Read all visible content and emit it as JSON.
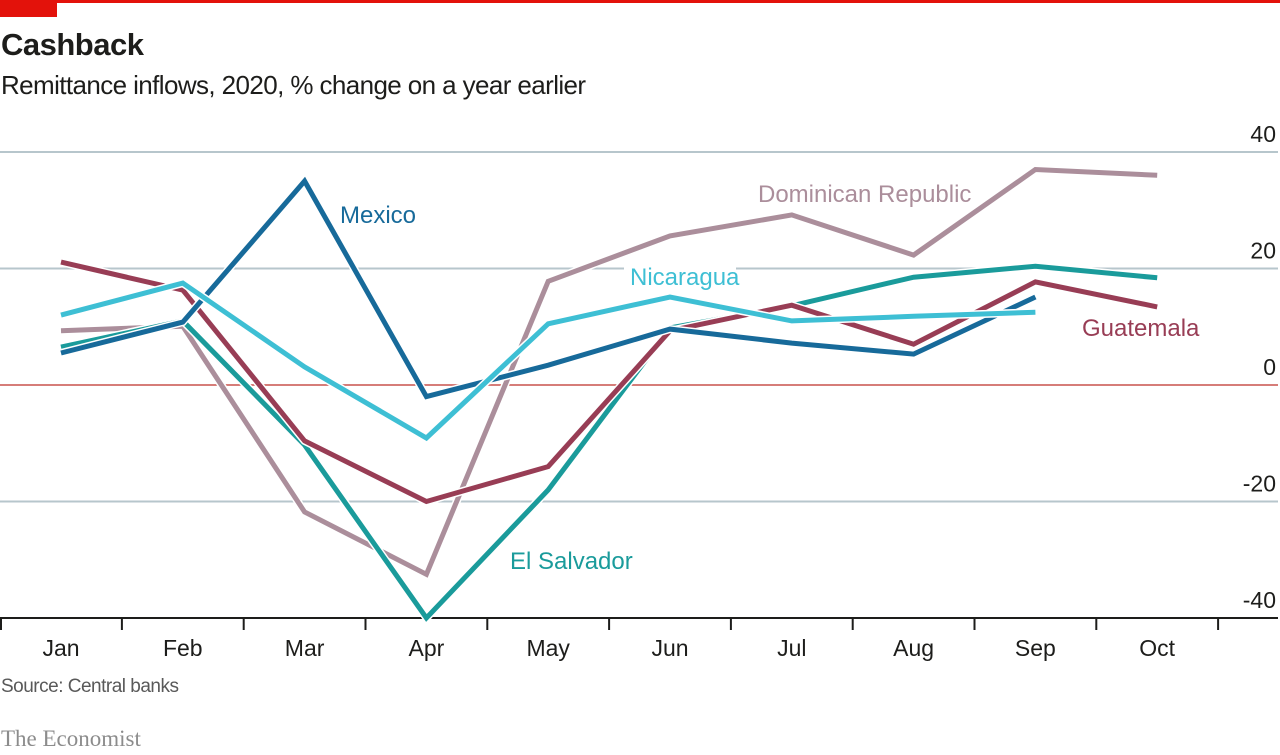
{
  "header": {
    "title": "Cashback",
    "subtitle": "Remittance inflows, 2020, % change on a year earlier"
  },
  "footer": {
    "source": "Source: Central banks",
    "brand": "The Economist"
  },
  "colors": {
    "accent": "#e3120b",
    "zero_line": "#c8524d",
    "grid": "#b7c6cc",
    "axis": "#1d1d1b"
  },
  "chart_data": {
    "type": "line",
    "title": "Cashback",
    "subtitle": "Remittance inflows, 2020, % change on a year earlier",
    "xlabel": "",
    "ylabel": "",
    "x": [
      "Jan",
      "Feb",
      "Mar",
      "Apr",
      "May",
      "Jun",
      "Jul",
      "Aug",
      "Sep",
      "Oct"
    ],
    "ylim": [
      -40,
      40
    ],
    "yticks": [
      40,
      20,
      0,
      -20,
      -40
    ],
    "ytick_position": "right",
    "grid": true,
    "legend": "inline labels",
    "series": [
      {
        "name": "Dominican Republic",
        "color": "#ab8e9b",
        "values": [
          9.3,
          10.1,
          -21.8,
          -32.5,
          17.8,
          25.6,
          29.2,
          22.3,
          37.0,
          36.0
        ]
      },
      {
        "name": "El Salvador",
        "color": "#1a9b9b",
        "values": [
          6.5,
          11.0,
          -10.3,
          -40.0,
          -18.0,
          9.8,
          13.6,
          18.5,
          20.4,
          18.4
        ]
      },
      {
        "name": "Guatemala",
        "color": "#983d55",
        "values": [
          21.1,
          16.3,
          -9.6,
          -20.0,
          -14.0,
          9.3,
          13.7,
          7.0,
          17.7,
          13.4
        ]
      },
      {
        "name": "Nicaragua",
        "color": "#3ebfd4",
        "values": [
          12.0,
          17.5,
          3.1,
          -9.1,
          10.5,
          15.1,
          11.0,
          11.8,
          12.5,
          null
        ]
      },
      {
        "name": "Mexico",
        "color": "#176a9a",
        "values": [
          5.5,
          10.8,
          35.0,
          -2.0,
          3.4,
          9.6,
          7.2,
          5.3,
          15.1,
          null
        ]
      }
    ],
    "annotations": [
      {
        "text": "Mexico",
        "series": "Mexico"
      },
      {
        "text": "Dominican Republic",
        "series": "Dominican Republic"
      },
      {
        "text": "Nicaragua",
        "series": "Nicaragua"
      },
      {
        "text": "Guatemala",
        "series": "Guatemala"
      },
      {
        "text": "El Salvador",
        "series": "El Salvador"
      }
    ]
  }
}
